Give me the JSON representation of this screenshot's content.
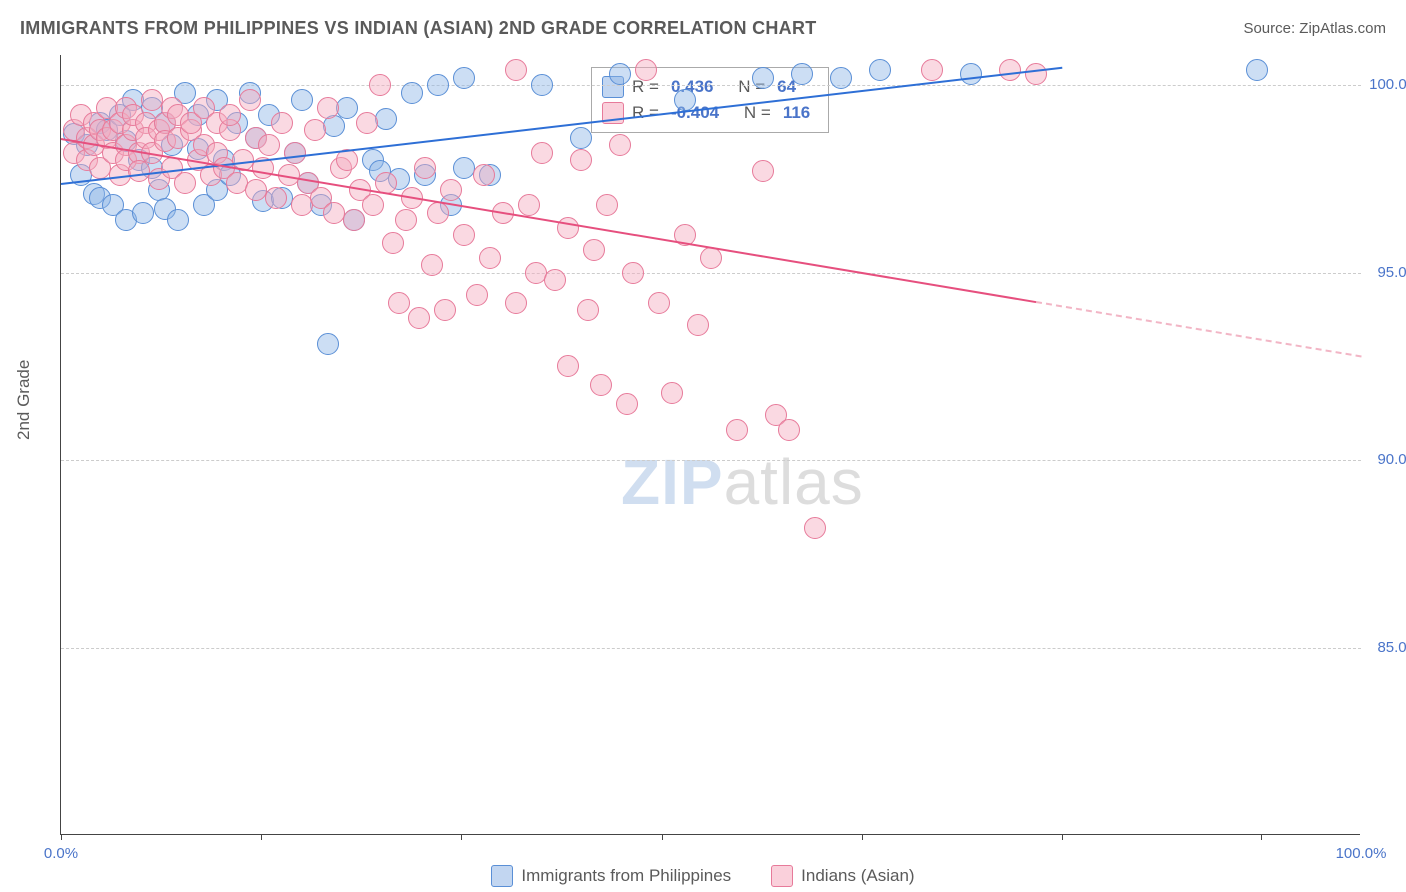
{
  "title": "IMMIGRANTS FROM PHILIPPINES VS INDIAN (ASIAN) 2ND GRADE CORRELATION CHART",
  "source": "Source: ZipAtlas.com",
  "y_axis_label": "2nd Grade",
  "watermark": {
    "part1": "ZIP",
    "part2": "atlas"
  },
  "chart": {
    "type": "scatter",
    "xlim": [
      0,
      100
    ],
    "ylim": [
      80,
      100.8
    ],
    "x_ticks": [
      0,
      15.4,
      30.8,
      46.2,
      61.6,
      77.0,
      92.3
    ],
    "x_tick_labels": {
      "0": "0.0%",
      "100": "100.0%"
    },
    "y_ticks": [
      85,
      90,
      95,
      100
    ],
    "y_tick_labels": [
      "85.0%",
      "90.0%",
      "95.0%",
      "100.0%"
    ],
    "background_color": "#ffffff",
    "grid_color": "#cccccc",
    "point_radius": 11,
    "series": [
      {
        "id": "A",
        "label": "Immigrants from Philippines",
        "fill": "rgba(143,181,230,0.45)",
        "stroke": "#5a8fd6",
        "R": "0.436",
        "N": "64",
        "trend": {
          "x1": 0,
          "y1": 97.4,
          "x2": 77,
          "y2": 100.5,
          "x_data_max": 77
        },
        "points": [
          [
            1,
            98.7
          ],
          [
            1.5,
            97.6
          ],
          [
            2,
            98.4
          ],
          [
            2.5,
            97.1
          ],
          [
            3,
            99.0
          ],
          [
            3,
            97.0
          ],
          [
            3.5,
            98.8
          ],
          [
            4,
            96.8
          ],
          [
            4.5,
            99.2
          ],
          [
            5,
            98.5
          ],
          [
            5,
            96.4
          ],
          [
            5.5,
            99.6
          ],
          [
            6,
            98.0
          ],
          [
            6.3,
            96.6
          ],
          [
            7,
            99.4
          ],
          [
            7,
            97.8
          ],
          [
            7.5,
            97.2
          ],
          [
            8,
            99.0
          ],
          [
            8,
            96.7
          ],
          [
            8.5,
            98.4
          ],
          [
            9,
            96.4
          ],
          [
            9.5,
            99.8
          ],
          [
            10.5,
            99.2
          ],
          [
            10.5,
            98.3
          ],
          [
            11,
            96.8
          ],
          [
            12,
            99.6
          ],
          [
            12,
            97.2
          ],
          [
            12.5,
            98.0
          ],
          [
            13.5,
            99.0
          ],
          [
            13,
            97.6
          ],
          [
            14.5,
            99.8
          ],
          [
            15,
            98.6
          ],
          [
            15.5,
            96.9
          ],
          [
            16,
            99.2
          ],
          [
            17,
            97.0
          ],
          [
            18,
            98.2
          ],
          [
            18.5,
            99.6
          ],
          [
            19,
            97.4
          ],
          [
            20,
            96.8
          ],
          [
            20.5,
            93.1
          ],
          [
            21,
            98.9
          ],
          [
            22,
            99.4
          ],
          [
            22.5,
            96.4
          ],
          [
            24,
            98.0
          ],
          [
            24.5,
            97.7
          ],
          [
            25,
            99.1
          ],
          [
            26,
            97.5
          ],
          [
            27,
            99.8
          ],
          [
            28,
            97.6
          ],
          [
            29,
            100.0
          ],
          [
            30,
            96.8
          ],
          [
            31,
            100.2
          ],
          [
            31,
            97.8
          ],
          [
            33,
            97.6
          ],
          [
            37,
            100.0
          ],
          [
            40,
            98.6
          ],
          [
            43,
            100.3
          ],
          [
            48,
            99.6
          ],
          [
            54,
            100.2
          ],
          [
            57,
            100.3
          ],
          [
            60,
            100.2
          ],
          [
            63,
            100.4
          ],
          [
            70,
            100.3
          ],
          [
            92,
            100.4
          ]
        ]
      },
      {
        "id": "B",
        "label": "Indians (Asian)",
        "fill": "rgba(245,170,190,0.45)",
        "stroke": "#e77a9a",
        "R": "-0.404",
        "N": "116",
        "trend": {
          "x1": 0,
          "y1": 98.6,
          "x2": 100,
          "y2": 92.8,
          "x_data_max": 75
        },
        "points": [
          [
            1,
            98.8
          ],
          [
            1,
            98.2
          ],
          [
            1.5,
            99.2
          ],
          [
            2,
            98.6
          ],
          [
            2,
            98.0
          ],
          [
            2.5,
            99.0
          ],
          [
            2.5,
            98.4
          ],
          [
            3,
            98.8
          ],
          [
            3,
            97.8
          ],
          [
            3.5,
            99.4
          ],
          [
            3.5,
            98.6
          ],
          [
            4,
            98.2
          ],
          [
            4,
            98.8
          ],
          [
            4.5,
            99.0
          ],
          [
            4.5,
            97.6
          ],
          [
            5,
            99.4
          ],
          [
            5,
            98.4
          ],
          [
            5,
            98.0
          ],
          [
            5.5,
            98.8
          ],
          [
            5.5,
            99.2
          ],
          [
            6,
            98.2
          ],
          [
            6,
            97.7
          ],
          [
            6.5,
            99.0
          ],
          [
            6.5,
            98.6
          ],
          [
            7,
            99.6
          ],
          [
            7,
            98.2
          ],
          [
            7.5,
            98.8
          ],
          [
            7.5,
            97.5
          ],
          [
            8,
            99.0
          ],
          [
            8,
            98.5
          ],
          [
            8.5,
            99.4
          ],
          [
            8.5,
            97.8
          ],
          [
            9,
            98.6
          ],
          [
            9,
            99.2
          ],
          [
            9.5,
            97.4
          ],
          [
            10,
            98.8
          ],
          [
            10,
            99.0
          ],
          [
            10.5,
            98.0
          ],
          [
            11,
            99.4
          ],
          [
            11,
            98.4
          ],
          [
            11.5,
            97.6
          ],
          [
            12,
            99.0
          ],
          [
            12,
            98.2
          ],
          [
            12.5,
            97.8
          ],
          [
            13,
            98.8
          ],
          [
            13,
            99.2
          ],
          [
            13.5,
            97.4
          ],
          [
            14,
            98.0
          ],
          [
            14.5,
            99.6
          ],
          [
            15,
            98.6
          ],
          [
            15,
            97.2
          ],
          [
            15.5,
            97.8
          ],
          [
            16,
            98.4
          ],
          [
            16.5,
            97.0
          ],
          [
            17,
            99.0
          ],
          [
            17.5,
            97.6
          ],
          [
            18,
            98.2
          ],
          [
            18.5,
            96.8
          ],
          [
            19,
            97.4
          ],
          [
            19.5,
            98.8
          ],
          [
            20,
            97.0
          ],
          [
            20.5,
            99.4
          ],
          [
            21,
            96.6
          ],
          [
            21.5,
            97.8
          ],
          [
            22,
            98.0
          ],
          [
            22.5,
            96.4
          ],
          [
            23,
            97.2
          ],
          [
            23.5,
            99.0
          ],
          [
            24,
            96.8
          ],
          [
            24.5,
            100.0
          ],
          [
            25,
            97.4
          ],
          [
            25.5,
            95.8
          ],
          [
            26,
            94.2
          ],
          [
            26.5,
            96.4
          ],
          [
            27,
            97.0
          ],
          [
            27.5,
            93.8
          ],
          [
            28,
            97.8
          ],
          [
            28.5,
            95.2
          ],
          [
            29,
            96.6
          ],
          [
            29.5,
            94.0
          ],
          [
            30,
            97.2
          ],
          [
            31,
            96.0
          ],
          [
            32,
            94.4
          ],
          [
            32.5,
            97.6
          ],
          [
            33,
            95.4
          ],
          [
            34,
            96.6
          ],
          [
            35,
            100.4
          ],
          [
            35,
            94.2
          ],
          [
            36,
            96.8
          ],
          [
            36.5,
            95.0
          ],
          [
            37,
            98.2
          ],
          [
            38,
            94.8
          ],
          [
            39,
            96.2
          ],
          [
            39,
            92.5
          ],
          [
            40,
            98.0
          ],
          [
            40.5,
            94.0
          ],
          [
            41,
            95.6
          ],
          [
            41.5,
            92.0
          ],
          [
            42,
            96.8
          ],
          [
            43,
            98.4
          ],
          [
            43.5,
            91.5
          ],
          [
            44,
            95.0
          ],
          [
            45,
            100.4
          ],
          [
            46,
            94.2
          ],
          [
            47,
            91.8
          ],
          [
            48,
            96.0
          ],
          [
            49,
            93.6
          ],
          [
            50,
            95.4
          ],
          [
            52,
            90.8
          ],
          [
            54,
            97.7
          ],
          [
            55,
            91.2
          ],
          [
            56,
            90.8
          ],
          [
            58,
            88.2
          ],
          [
            67,
            100.4
          ],
          [
            73,
            100.4
          ],
          [
            75,
            100.3
          ]
        ]
      }
    ]
  },
  "legend_box": {
    "r_label": "R =",
    "n_label": "N ="
  },
  "bottom_legend": [
    {
      "series": "A",
      "label": "Immigrants from Philippines"
    },
    {
      "series": "B",
      "label": "Indians (Asian)"
    }
  ]
}
